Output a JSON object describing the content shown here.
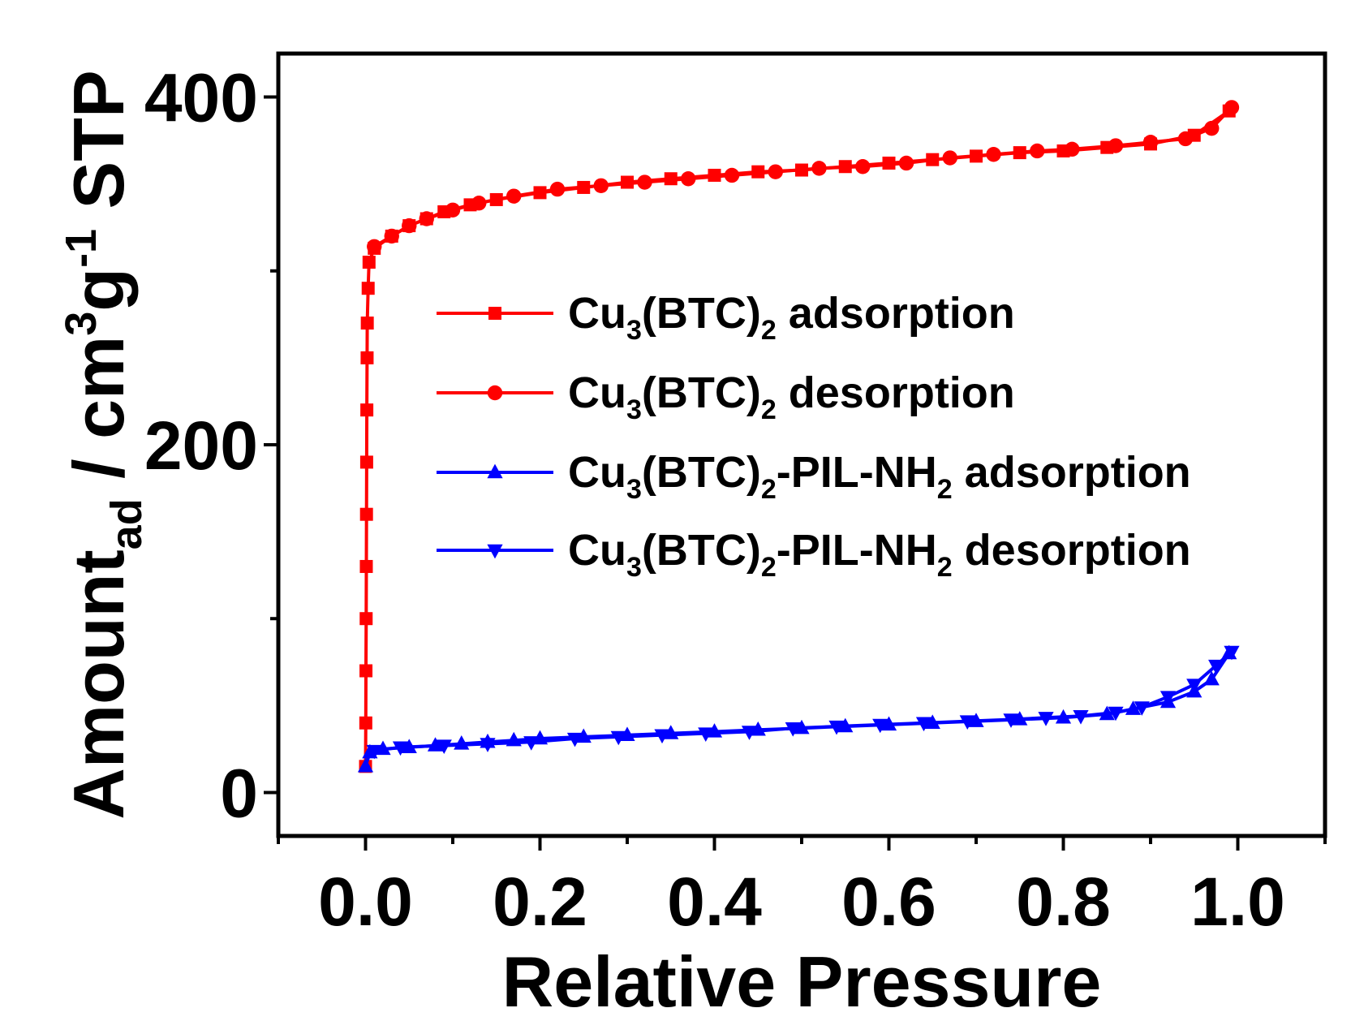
{
  "chart_data": {
    "type": "line",
    "xlabel": "Relative Pressure",
    "ylabel": {
      "main": "Amount",
      "sub": "ad",
      "sep": " / cm",
      "sup1": "3",
      "mid": "g",
      "sup2": "-1",
      "tail": " STP"
    },
    "xlim": [
      -0.1,
      1.1
    ],
    "ylim": [
      -25,
      425
    ],
    "xticks": [
      {
        "v": 0.0,
        "label": "0.0"
      },
      {
        "v": 0.2,
        "label": "0.2"
      },
      {
        "v": 0.4,
        "label": "0.4"
      },
      {
        "v": 0.6,
        "label": "0.6"
      },
      {
        "v": 0.8,
        "label": "0.8"
      },
      {
        "v": 1.0,
        "label": "1.0"
      }
    ],
    "yticks": [
      {
        "v": 0,
        "label": "0"
      },
      {
        "v": 200,
        "label": "200"
      },
      {
        "v": 400,
        "label": "400"
      }
    ],
    "series": [
      {
        "name": "Cu3(BTC)2 adsorption",
        "color": "#ff0000",
        "marker": "square",
        "points": [
          [
            0,
            15
          ],
          [
            0.0003,
            40
          ],
          [
            0.0005,
            70
          ],
          [
            0.0007,
            100
          ],
          [
            0.0009,
            130
          ],
          [
            0.0011,
            160
          ],
          [
            0.0013,
            190
          ],
          [
            0.0015,
            220
          ],
          [
            0.0018,
            250
          ],
          [
            0.002,
            270
          ],
          [
            0.003,
            290
          ],
          [
            0.004,
            305
          ],
          [
            0.01,
            313
          ],
          [
            0.03,
            320
          ],
          [
            0.05,
            326
          ],
          [
            0.07,
            330
          ],
          [
            0.09,
            334
          ],
          [
            0.12,
            338
          ],
          [
            0.15,
            341
          ],
          [
            0.2,
            345
          ],
          [
            0.25,
            348
          ],
          [
            0.3,
            351
          ],
          [
            0.35,
            353
          ],
          [
            0.4,
            355
          ],
          [
            0.45,
            357
          ],
          [
            0.5,
            358
          ],
          [
            0.55,
            360
          ],
          [
            0.6,
            362
          ],
          [
            0.65,
            364
          ],
          [
            0.7,
            366
          ],
          [
            0.75,
            368
          ],
          [
            0.8,
            369
          ],
          [
            0.85,
            371
          ],
          [
            0.9,
            373
          ],
          [
            0.95,
            378
          ],
          [
            0.99,
            392
          ]
        ]
      },
      {
        "name": "Cu3(BTC)2 desorption",
        "color": "#ff0000",
        "marker": "circle",
        "points": [
          [
            0.993,
            394
          ],
          [
            0.97,
            382
          ],
          [
            0.94,
            376
          ],
          [
            0.9,
            374
          ],
          [
            0.86,
            372
          ],
          [
            0.81,
            370
          ],
          [
            0.77,
            369
          ],
          [
            0.72,
            367
          ],
          [
            0.67,
            365
          ],
          [
            0.62,
            362
          ],
          [
            0.57,
            360
          ],
          [
            0.52,
            359
          ],
          [
            0.47,
            357
          ],
          [
            0.42,
            355
          ],
          [
            0.37,
            353
          ],
          [
            0.32,
            351
          ],
          [
            0.27,
            349
          ],
          [
            0.22,
            347
          ],
          [
            0.17,
            343
          ],
          [
            0.13,
            339
          ],
          [
            0.1,
            335
          ],
          [
            0.07,
            330
          ],
          [
            0.05,
            326
          ],
          [
            0.03,
            320
          ],
          [
            0.01,
            314
          ]
        ]
      },
      {
        "name": "Cu3(BTC)2-PIL-NH2 adsorption",
        "color": "#0000ff",
        "marker": "triangle-up",
        "points": [
          [
            0,
            15
          ],
          [
            0.005,
            23
          ],
          [
            0.02,
            25
          ],
          [
            0.05,
            26
          ],
          [
            0.08,
            27
          ],
          [
            0.11,
            28
          ],
          [
            0.14,
            29
          ],
          [
            0.17,
            30
          ],
          [
            0.2,
            31
          ],
          [
            0.25,
            32
          ],
          [
            0.3,
            33
          ],
          [
            0.35,
            34
          ],
          [
            0.4,
            35
          ],
          [
            0.45,
            36
          ],
          [
            0.5,
            37
          ],
          [
            0.55,
            38
          ],
          [
            0.6,
            39
          ],
          [
            0.65,
            40
          ],
          [
            0.7,
            41
          ],
          [
            0.75,
            42
          ],
          [
            0.8,
            43
          ],
          [
            0.85,
            45
          ],
          [
            0.88,
            48
          ],
          [
            0.92,
            52
          ],
          [
            0.95,
            58
          ],
          [
            0.97,
            65
          ],
          [
            0.99,
            80
          ]
        ]
      },
      {
        "name": "Cu3(BTC)2-PIL-NH2 desorption",
        "color": "#0000ff",
        "marker": "triangle-down",
        "points": [
          [
            0.993,
            81
          ],
          [
            0.975,
            73
          ],
          [
            0.95,
            62
          ],
          [
            0.92,
            55
          ],
          [
            0.89,
            49
          ],
          [
            0.86,
            46
          ],
          [
            0.82,
            44
          ],
          [
            0.78,
            43
          ],
          [
            0.74,
            42
          ],
          [
            0.69,
            41
          ],
          [
            0.64,
            40
          ],
          [
            0.59,
            39
          ],
          [
            0.54,
            38
          ],
          [
            0.49,
            37
          ],
          [
            0.44,
            35
          ],
          [
            0.39,
            34
          ],
          [
            0.34,
            33
          ],
          [
            0.29,
            32
          ],
          [
            0.24,
            31
          ],
          [
            0.19,
            29
          ],
          [
            0.14,
            28
          ],
          [
            0.09,
            27
          ],
          [
            0.04,
            26
          ],
          [
            0.01,
            24
          ]
        ]
      }
    ],
    "legend": {
      "placement": "center-right",
      "entries": [
        {
          "pre": "Cu",
          "s1": "3",
          "mid": "(BTC)",
          "s2": "2",
          "mid2": "",
          "s3": "",
          "post": " adsorption"
        },
        {
          "pre": "Cu",
          "s1": "3",
          "mid": "(BTC)",
          "s2": "2",
          "mid2": "",
          "s3": "",
          "post": " desorption"
        },
        {
          "pre": "Cu",
          "s1": "3",
          "mid": "(BTC)",
          "s2": "2",
          "mid2": "-PIL-NH",
          "s3": "2",
          "post": " adsorption"
        },
        {
          "pre": "Cu",
          "s1": "3",
          "mid": "(BTC)",
          "s2": "2",
          "mid2": "-PIL-NH",
          "s3": "2",
          "post": " desorption"
        }
      ]
    }
  }
}
